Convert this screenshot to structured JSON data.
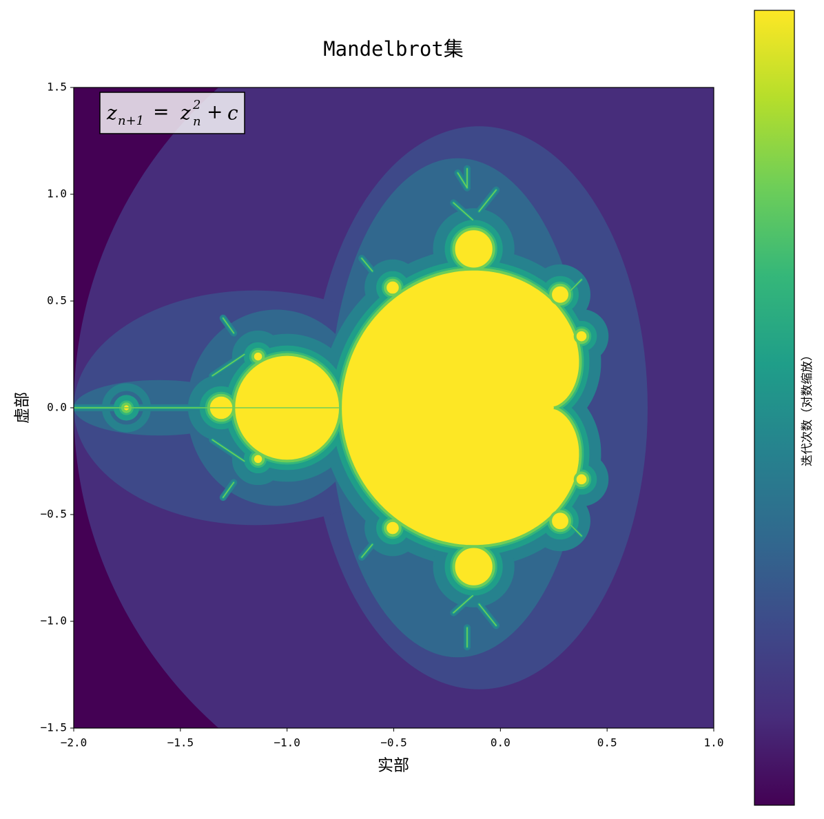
{
  "chart_data": {
    "type": "image",
    "title": "Mandelbrot集",
    "xlabel": "实部",
    "ylabel": "虚部",
    "colorbar_label": "迭代次数（对数缩放）",
    "formula": [
      "z",
      "n+1",
      "=",
      "z",
      "2",
      "n",
      "+",
      "c"
    ],
    "xlim": [
      -2,
      1
    ],
    "ylim": [
      -1.5,
      1.5
    ],
    "xticks": [
      {
        "value": -2,
        "label": "−2.0"
      },
      {
        "value": -1.5,
        "label": "−1.5"
      },
      {
        "value": -1,
        "label": "−1.0"
      },
      {
        "value": -0.5,
        "label": "−0.5"
      },
      {
        "value": 0,
        "label": "0.0"
      },
      0.5,
      {
        "value": 1,
        "label": "1.0"
      }
    ],
    "yticks": [
      {
        "value": -1.5,
        "label": "−1.5"
      },
      {
        "value": -1,
        "label": "−1.0"
      },
      {
        "value": -0.5,
        "label": "−0.5"
      },
      {
        "value": 0,
        "label": "0.0"
      },
      0.5,
      {
        "value": 1,
        "label": "1.0"
      },
      1.5
    ],
    "colormap": [
      "#440154",
      "#472d7b",
      "#3e4989",
      "#31688e",
      "#26828e",
      "#1f9e89",
      "#35b779",
      "#6ece58",
      "#b5de2b",
      "#fde725"
    ]
  }
}
